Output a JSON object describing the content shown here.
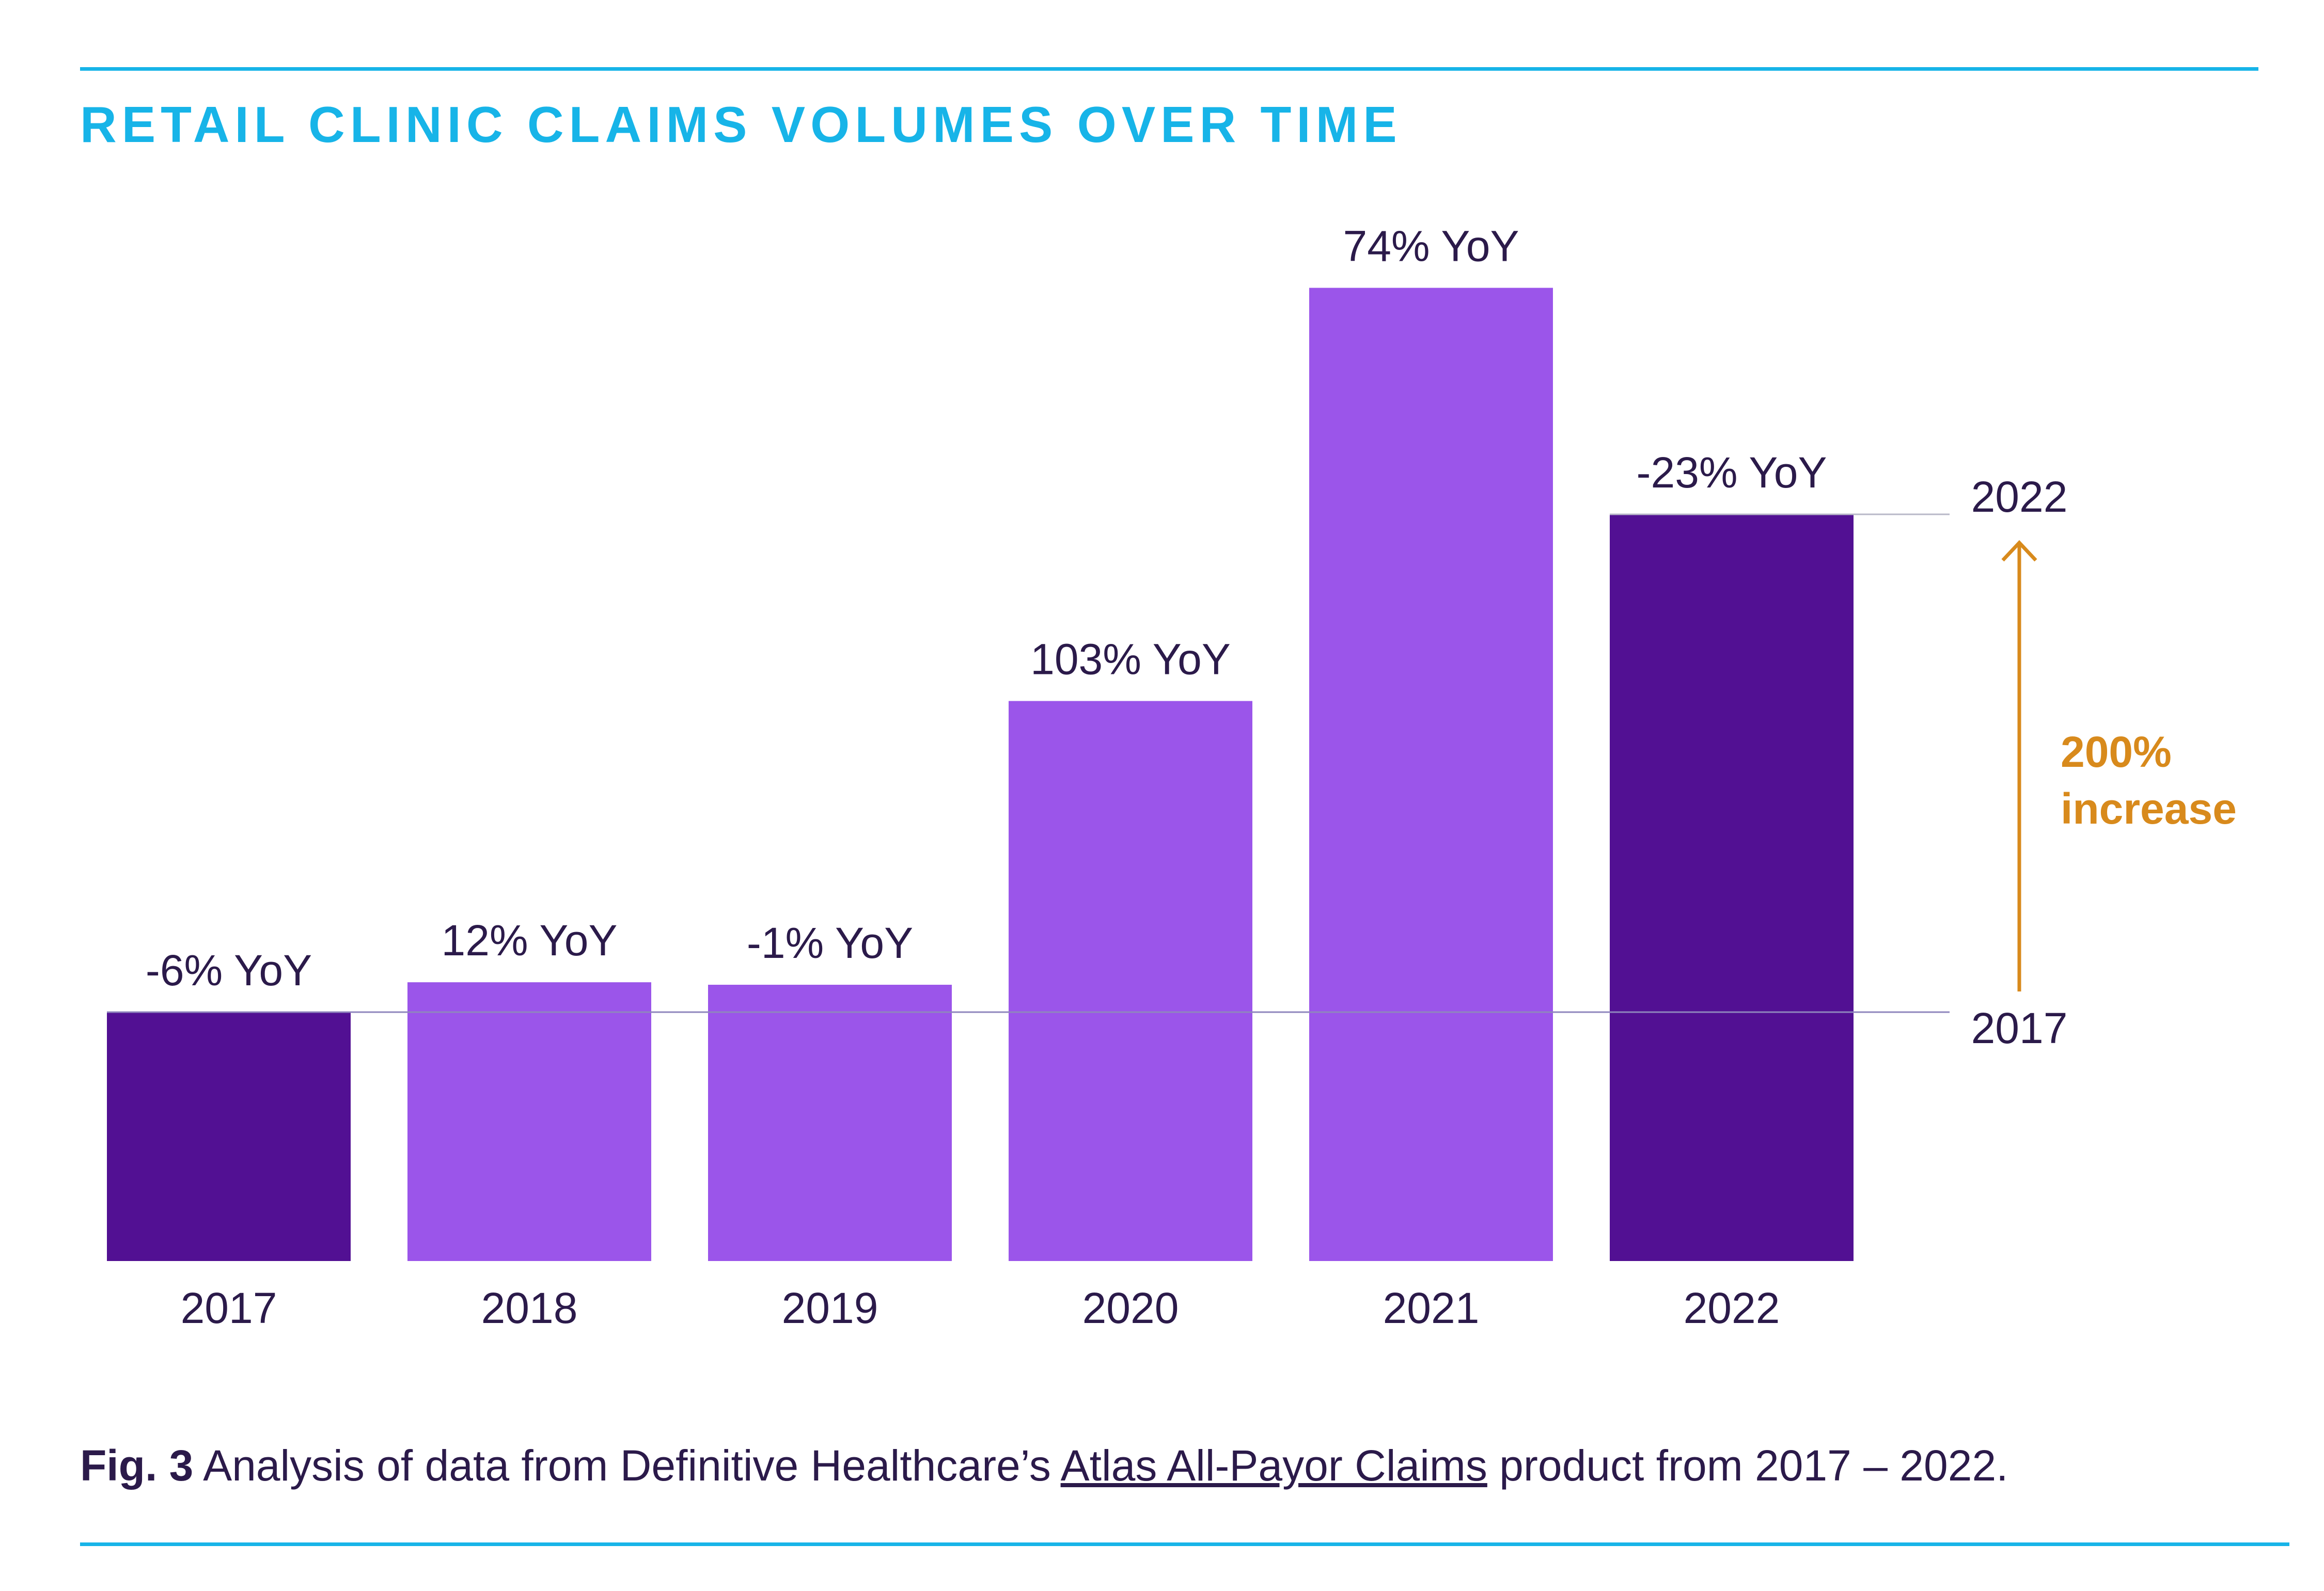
{
  "title": "RETAIL CLINIC CLAIMS VOLUMES OVER TIME",
  "caption": {
    "fig_label": "Fig. 3",
    "text_before": " Analysis of data from Definitive Healthcare’s ",
    "link_text": "Atlas All-Payor Claims",
    "text_after": " product from 2017 – 2022."
  },
  "colors": {
    "accent": "#17b4e8",
    "bar_dark": "#521093",
    "bar_light": "#9b55ea",
    "text": "#2b1a4a",
    "highlight": "#d88a1c"
  },
  "chart_data": {
    "type": "bar",
    "categories": [
      "2017",
      "2018",
      "2019",
      "2020",
      "2021",
      "2022"
    ],
    "values": [
      100,
      112,
      111,
      225,
      391,
      300
    ],
    "bar_labels": [
      "-6% YoY",
      "12% YoY",
      "-1% YoY",
      "103% YoY",
      "74% YoY",
      "-23% YoY"
    ],
    "highlighted": [
      "2017",
      "2022"
    ],
    "ylim": [
      0,
      400
    ],
    "grid": false,
    "reference_lines": [
      {
        "label": "2017",
        "value": 100
      },
      {
        "label": "2022",
        "value": 300
      }
    ],
    "annotation": {
      "line1": "200%",
      "line2": "increase"
    }
  }
}
